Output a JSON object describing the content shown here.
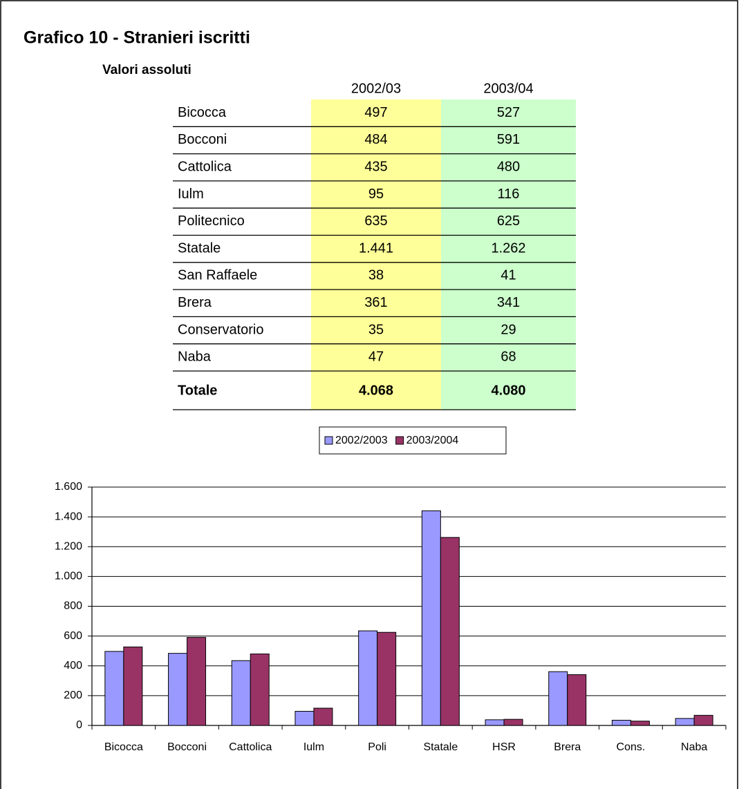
{
  "title": "Grafico 10 - Stranieri iscritti",
  "subtitle": "Valori assoluti",
  "table": {
    "header": [
      "2002/03",
      "2003/04"
    ],
    "rows": [
      [
        "Bicocca",
        "497",
        "527"
      ],
      [
        "Bocconi",
        "484",
        "591"
      ],
      [
        "Cattolica",
        "435",
        "480"
      ],
      [
        "Iulm",
        "95",
        "116"
      ],
      [
        "Politecnico",
        "635",
        "625"
      ],
      [
        "Statale",
        "1.441",
        "1.262"
      ],
      [
        "San Raffaele",
        "38",
        "41"
      ],
      [
        "Brera",
        "361",
        "341"
      ],
      [
        "Conservatorio",
        "35",
        "29"
      ],
      [
        "Naba",
        "47",
        "68"
      ]
    ],
    "total": [
      "Totale",
      "4.068",
      "4.080"
    ]
  },
  "chart_data": {
    "type": "bar",
    "categories": [
      "Bicocca",
      "Bocconi",
      "Cattolica",
      "Iulm",
      "Poli",
      "Statale",
      "HSR",
      "Brera",
      "Cons.",
      "Naba"
    ],
    "series": [
      {
        "name": "2002/2003",
        "color": "#9999ff",
        "values": [
          497,
          484,
          435,
          95,
          635,
          1441,
          38,
          361,
          35,
          47
        ]
      },
      {
        "name": "2003/2004",
        "color": "#993366",
        "values": [
          527,
          591,
          480,
          116,
          625,
          1262,
          41,
          341,
          29,
          68
        ]
      }
    ],
    "ylim": [
      0,
      1600
    ],
    "yticks": [
      0,
      200,
      400,
      600,
      800,
      {
        "value": 1000,
        "label": "1.000"
      },
      {
        "value": 1200,
        "label": "1.200"
      },
      {
        "value": 1400,
        "label": "1.400"
      },
      {
        "value": 1600,
        "label": "1.600"
      }
    ],
    "grid": true,
    "legend": "top"
  }
}
